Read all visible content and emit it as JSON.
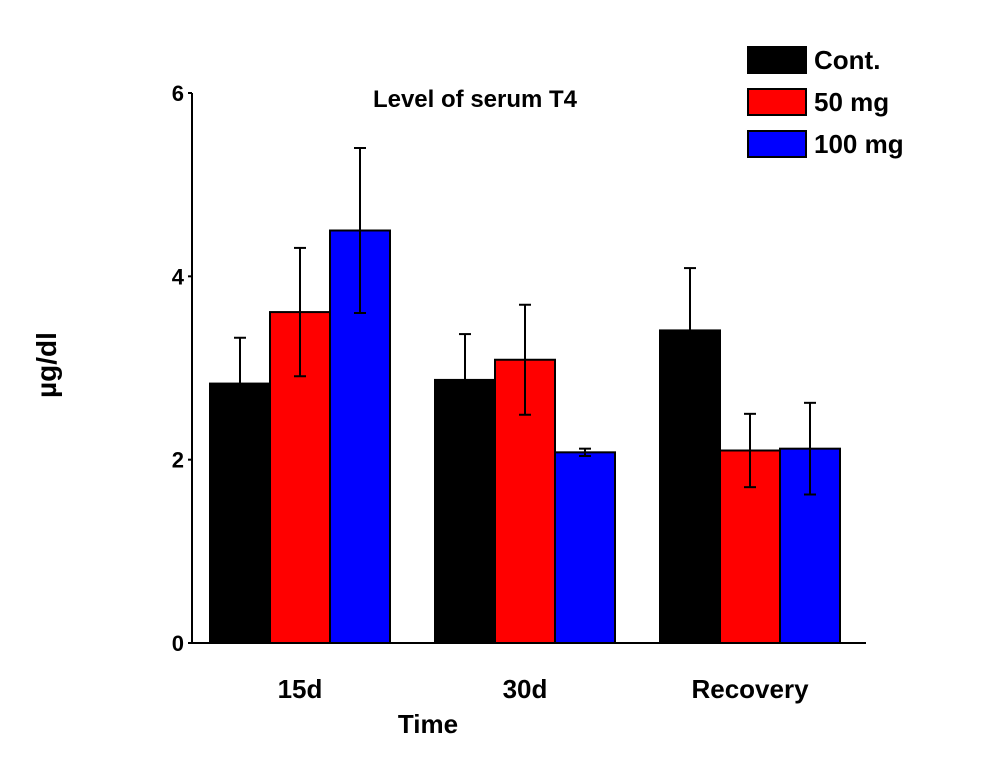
{
  "chart_data": {
    "type": "bar",
    "title": "Level of serum T4",
    "xlabel": "Time",
    "ylabel": "µg/dl",
    "categories": [
      "15d",
      "30d",
      "Recovery"
    ],
    "ylim": [
      0,
      6
    ],
    "yticks": [
      0,
      2,
      4,
      6
    ],
    "y_tick_labels": [
      "0",
      "2",
      "4",
      "6"
    ],
    "grid": false,
    "legend_position": "top-right",
    "series": [
      {
        "name": "Cont.",
        "color": "#000000",
        "values": [
          2.83,
          2.87,
          3.41
        ],
        "errors": [
          0.5,
          0.5,
          0.68
        ]
      },
      {
        "name": "50 mg",
        "color": "#ff0000",
        "values": [
          3.61,
          3.09,
          2.1
        ],
        "errors": [
          0.7,
          0.6,
          0.4
        ]
      },
      {
        "name": "100 mg",
        "color": "#0000ff",
        "values": [
          4.5,
          2.08,
          2.12
        ],
        "errors": [
          0.9,
          0.04,
          0.5
        ]
      }
    ]
  }
}
